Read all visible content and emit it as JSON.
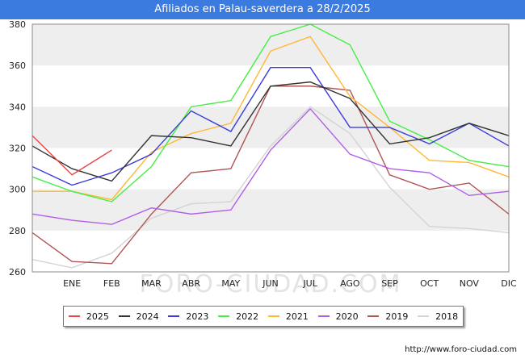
{
  "title": "Afiliados en Palau-saverdera a 28/2/2025",
  "watermark": "FORO-CIUDAD.COM",
  "footer_url": "http://www.foro-ciudad.com",
  "chart_data": {
    "type": "line",
    "categories": [
      "ENE",
      "FEB",
      "MAR",
      "ABR",
      "MAY",
      "JUN",
      "JUL",
      "AGO",
      "SEP",
      "OCT",
      "NOV",
      "DIC"
    ],
    "x_range": [
      0,
      12
    ],
    "ylim": [
      260,
      380
    ],
    "yticks": [
      260,
      280,
      300,
      320,
      340,
      360,
      380
    ],
    "grid": "horizontal bands",
    "legend_position": "bottom",
    "series": [
      {
        "name": "2025",
        "color": "#e84545",
        "x": [
          0,
          1,
          2
        ],
        "values": [
          326,
          307,
          319
        ]
      },
      {
        "name": "2024",
        "color": "#333333",
        "x": [
          0,
          1,
          2,
          3,
          4,
          5,
          6,
          7,
          8,
          9,
          10,
          11,
          12
        ],
        "values": [
          321,
          310,
          304,
          326,
          325,
          321,
          350,
          352,
          344,
          322,
          325,
          332,
          326
        ]
      },
      {
        "name": "2023",
        "color": "#3b3bdd",
        "x": [
          0,
          1,
          2,
          3,
          4,
          5,
          6,
          7,
          8,
          9,
          10,
          11,
          12
        ],
        "values": [
          311,
          302,
          308,
          317,
          338,
          328,
          359,
          359,
          330,
          330,
          322,
          332,
          321
        ]
      },
      {
        "name": "2022",
        "color": "#44ee44",
        "x": [
          0,
          1,
          2,
          3,
          4,
          5,
          6,
          7,
          8,
          9,
          10,
          11,
          12
        ],
        "values": [
          306,
          299,
          294,
          311,
          340,
          343,
          374,
          380,
          370,
          333,
          324,
          314,
          311
        ]
      },
      {
        "name": "2021",
        "color": "#ffb833",
        "x": [
          0,
          1,
          2,
          3,
          4,
          5,
          6,
          7,
          8,
          9,
          10,
          11,
          12
        ],
        "values": [
          299,
          299,
          295,
          318,
          327,
          332,
          367,
          374,
          345,
          330,
          314,
          313,
          306
        ]
      },
      {
        "name": "2020",
        "color": "#b05ee8",
        "x": [
          0,
          1,
          2,
          3,
          4,
          5,
          6,
          7,
          8,
          9,
          10,
          11,
          12
        ],
        "values": [
          288,
          285,
          283,
          291,
          288,
          290,
          319,
          339,
          317,
          310,
          308,
          297,
          299
        ]
      },
      {
        "name": "2019",
        "color": "#b05555",
        "x": [
          0,
          1,
          2,
          3,
          4,
          5,
          6,
          7,
          8,
          9,
          10,
          11,
          12
        ],
        "values": [
          279,
          265,
          264,
          288,
          308,
          310,
          350,
          350,
          348,
          307,
          300,
          303,
          288
        ]
      },
      {
        "name": "2018",
        "color": "#d3d3d3",
        "x": [
          0,
          1,
          2,
          3,
          4,
          5,
          6,
          7,
          8,
          9,
          10,
          11,
          12
        ],
        "values": [
          266,
          262,
          269,
          286,
          293,
          294,
          321,
          340,
          327,
          301,
          282,
          281,
          279
        ]
      }
    ]
  }
}
